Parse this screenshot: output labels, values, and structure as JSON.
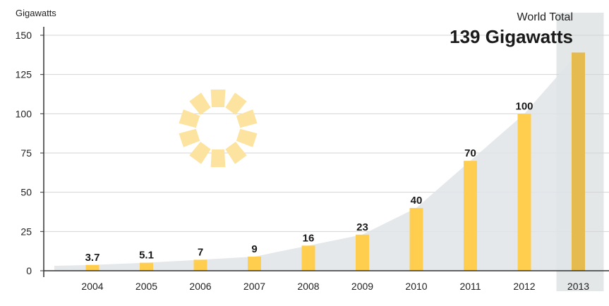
{
  "chart_data": {
    "type": "bar",
    "ylabel": "Gigawatts",
    "categories": [
      "2004",
      "2005",
      "2006",
      "2007",
      "2008",
      "2009",
      "2010",
      "2011",
      "2012",
      "2013"
    ],
    "values": [
      3.7,
      5.1,
      7,
      9,
      16,
      23,
      40,
      70,
      100,
      139
    ],
    "data_labels": [
      "3.7",
      "5.1",
      "7",
      "9",
      "16",
      "23",
      "40",
      "70",
      "100",
      ""
    ],
    "ylim": [
      0,
      150
    ],
    "yticks": [
      0,
      25,
      50,
      75,
      100,
      125,
      150
    ],
    "grid": true,
    "highlight": {
      "category": "2013",
      "label_top": "World Total",
      "label_value": "139 Gigawatts"
    },
    "colors": {
      "bar": "#ffce4f",
      "highlight_bar": "#e5bb4f",
      "area": "#dfe4e7",
      "highlight_band": "#e4e7e8",
      "sun": "#fde3a0"
    }
  }
}
